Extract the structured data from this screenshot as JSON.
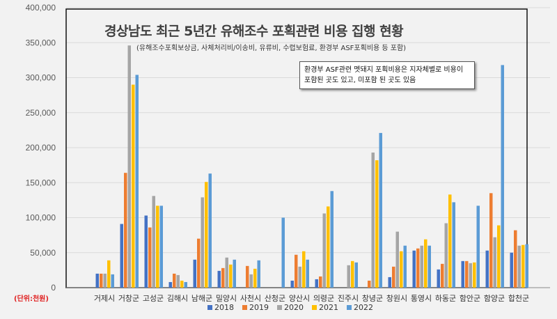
{
  "chart_data": {
    "type": "bar",
    "title": "경상남도 최근 5년간 유해조수 포획관련 비용 집행 현황",
    "subtitle": "(유해조수포획보상금, 사체처리비/이송비, 유류비, 수렵보험료, 환경부 ASF포획비용 등 포함)",
    "annotation": "환경부 ASF관련 멧돼지 포획비용은 지자체별로 비용이 포함된 곳도 있고, 미포함 된 곳도 있음",
    "unit_label": "(단위:천원)",
    "ylim": [
      0,
      400000
    ],
    "yticks": [
      "0",
      "50,000",
      "100,000",
      "150,000",
      "200,000",
      "250,000",
      "300,000",
      "350,000",
      "400,000"
    ],
    "grid": true,
    "legend_position": "bottom",
    "categories": [
      "거제시",
      "거창군",
      "고성군",
      "김해시",
      "남해군",
      "밀양시",
      "사천시",
      "산청군",
      "양산시",
      "의령군",
      "진주시",
      "창녕군",
      "창원시",
      "통영시",
      "하동군",
      "함안군",
      "함양군",
      "합천군"
    ],
    "series": [
      {
        "name": "2018",
        "color": "#4472c4",
        "values": [
          20000,
          91000,
          103000,
          8000,
          40000,
          24000,
          0,
          0,
          10000,
          12000,
          0,
          0,
          15000,
          53000,
          26000,
          38000,
          53000,
          50000
        ]
      },
      {
        "name": "2019",
        "color": "#ed7d31",
        "values": [
          20000,
          164000,
          86000,
          20000,
          70000,
          28000,
          31000,
          0,
          47000,
          16000,
          0,
          10000,
          30000,
          56000,
          34000,
          38000,
          135000,
          82000
        ]
      },
      {
        "name": "2020",
        "color": "#a5a5a5",
        "values": [
          20000,
          346000,
          131000,
          18000,
          129000,
          43000,
          19000,
          0,
          30000,
          106000,
          32000,
          193000,
          80000,
          60000,
          92000,
          35000,
          72000,
          60000
        ]
      },
      {
        "name": "2021",
        "color": "#ffc000",
        "values": [
          39000,
          290000,
          117000,
          10000,
          151000,
          33000,
          27000,
          0,
          52000,
          116000,
          38000,
          182000,
          52000,
          69000,
          133000,
          36000,
          89000,
          61000
        ]
      },
      {
        "name": "2022",
        "color": "#5b9bd5",
        "values": [
          19000,
          304000,
          117000,
          8000,
          163000,
          40000,
          39000,
          100000,
          40000,
          138000,
          36000,
          221000,
          60000,
          60000,
          122000,
          117000,
          318000,
          62000
        ]
      }
    ]
  }
}
